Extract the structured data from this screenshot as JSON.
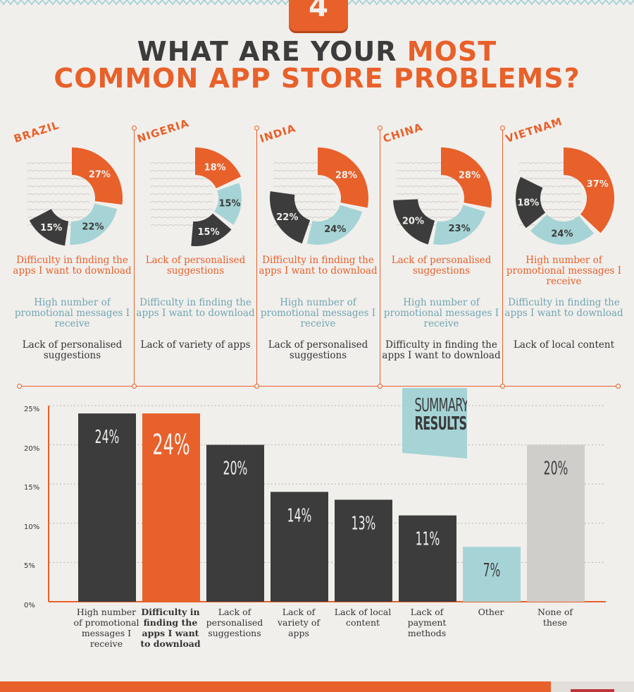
{
  "badge": {
    "number": "4"
  },
  "title": {
    "part1": "WHAT ARE YOUR ",
    "part2": "MOST",
    "line2": "COMMON APP STORE PROBLEMS?"
  },
  "countries": [
    {
      "name": "BRAZIL",
      "donut": [
        {
          "v": 27,
          "label": "27%",
          "color": "#e8602a"
        },
        {
          "v": 22,
          "label": "22%",
          "color": "#a6d4d6"
        },
        {
          "v": 15,
          "label": "15%",
          "color": "#3c3c3c"
        }
      ],
      "p1": "Difficulty in finding the apps I want to download",
      "p2": "High number of promotional messages I receive",
      "p3": "Lack of personalised suggestions"
    },
    {
      "name": "NIGERIA",
      "donut": [
        {
          "v": 18,
          "label": "18%",
          "color": "#e8602a"
        },
        {
          "v": 15,
          "label": "15%",
          "color": "#a6d4d6"
        },
        {
          "v": 15,
          "label": "15%",
          "color": "#3c3c3c"
        }
      ],
      "p1": "Lack of personalised suggestions",
      "p2": "Difficulty in finding the apps I want to download",
      "p3": "Lack of variety of apps"
    },
    {
      "name": "INDIA",
      "donut": [
        {
          "v": 28,
          "label": "28%",
          "color": "#e8602a"
        },
        {
          "v": 24,
          "label": "24%",
          "color": "#a6d4d6"
        },
        {
          "v": 22,
          "label": "22%",
          "color": "#3c3c3c"
        }
      ],
      "p1": "Difficulty in finding the apps I want to download",
      "p2": "High number of promotional messages I receive",
      "p3": "Lack of personalised suggestions"
    },
    {
      "name": "CHINA",
      "donut": [
        {
          "v": 28,
          "label": "28%",
          "color": "#e8602a"
        },
        {
          "v": 23,
          "label": "23%",
          "color": "#a6d4d6"
        },
        {
          "v": 20,
          "label": "20%",
          "color": "#3c3c3c"
        }
      ],
      "p1": "Lack of personalised suggestions",
      "p2": "High number of promotional messages I receive",
      "p3": "Difficulty in finding the apps I want to download"
    },
    {
      "name": "VIETNAM",
      "donut": [
        {
          "v": 37,
          "label": "37%",
          "color": "#e8602a"
        },
        {
          "v": 24,
          "label": "24%",
          "color": "#a6d4d6"
        },
        {
          "v": 18,
          "label": "18%",
          "color": "#3c3c3c"
        }
      ],
      "p1": "High number of promotional messages I receive",
      "p2": "Difficulty in finding the apps I want to download",
      "p3": "Lack of local content"
    }
  ],
  "summary": {
    "line1": "SUMMARY",
    "line2": "RESULTS"
  },
  "chart_data": {
    "type": "bar",
    "ylim": [
      0,
      25
    ],
    "yticks": [
      "0%",
      "5%",
      "10%",
      "15%",
      "20%",
      "25%"
    ],
    "grid": true,
    "categories": [
      "High number of promotional messages I receive",
      "Difficulty in finding the apps I want to download",
      "Lack of personalised suggestions",
      "Lack of variety of apps",
      "Lack of local content",
      "Lack of payment methods",
      "Other",
      "None of these"
    ],
    "values": [
      24,
      24,
      20,
      14,
      13,
      11,
      7,
      20
    ],
    "value_labels": [
      "24%",
      "24%",
      "20%",
      "14%",
      "13%",
      "11%",
      "7%",
      "20%"
    ],
    "colors": [
      "#3c3c3c",
      "#e8602a",
      "#3c3c3c",
      "#3c3c3c",
      "#3c3c3c",
      "#3c3c3c",
      "#a6d4d6",
      "#d0cecb"
    ],
    "highlight_index": 1
  }
}
